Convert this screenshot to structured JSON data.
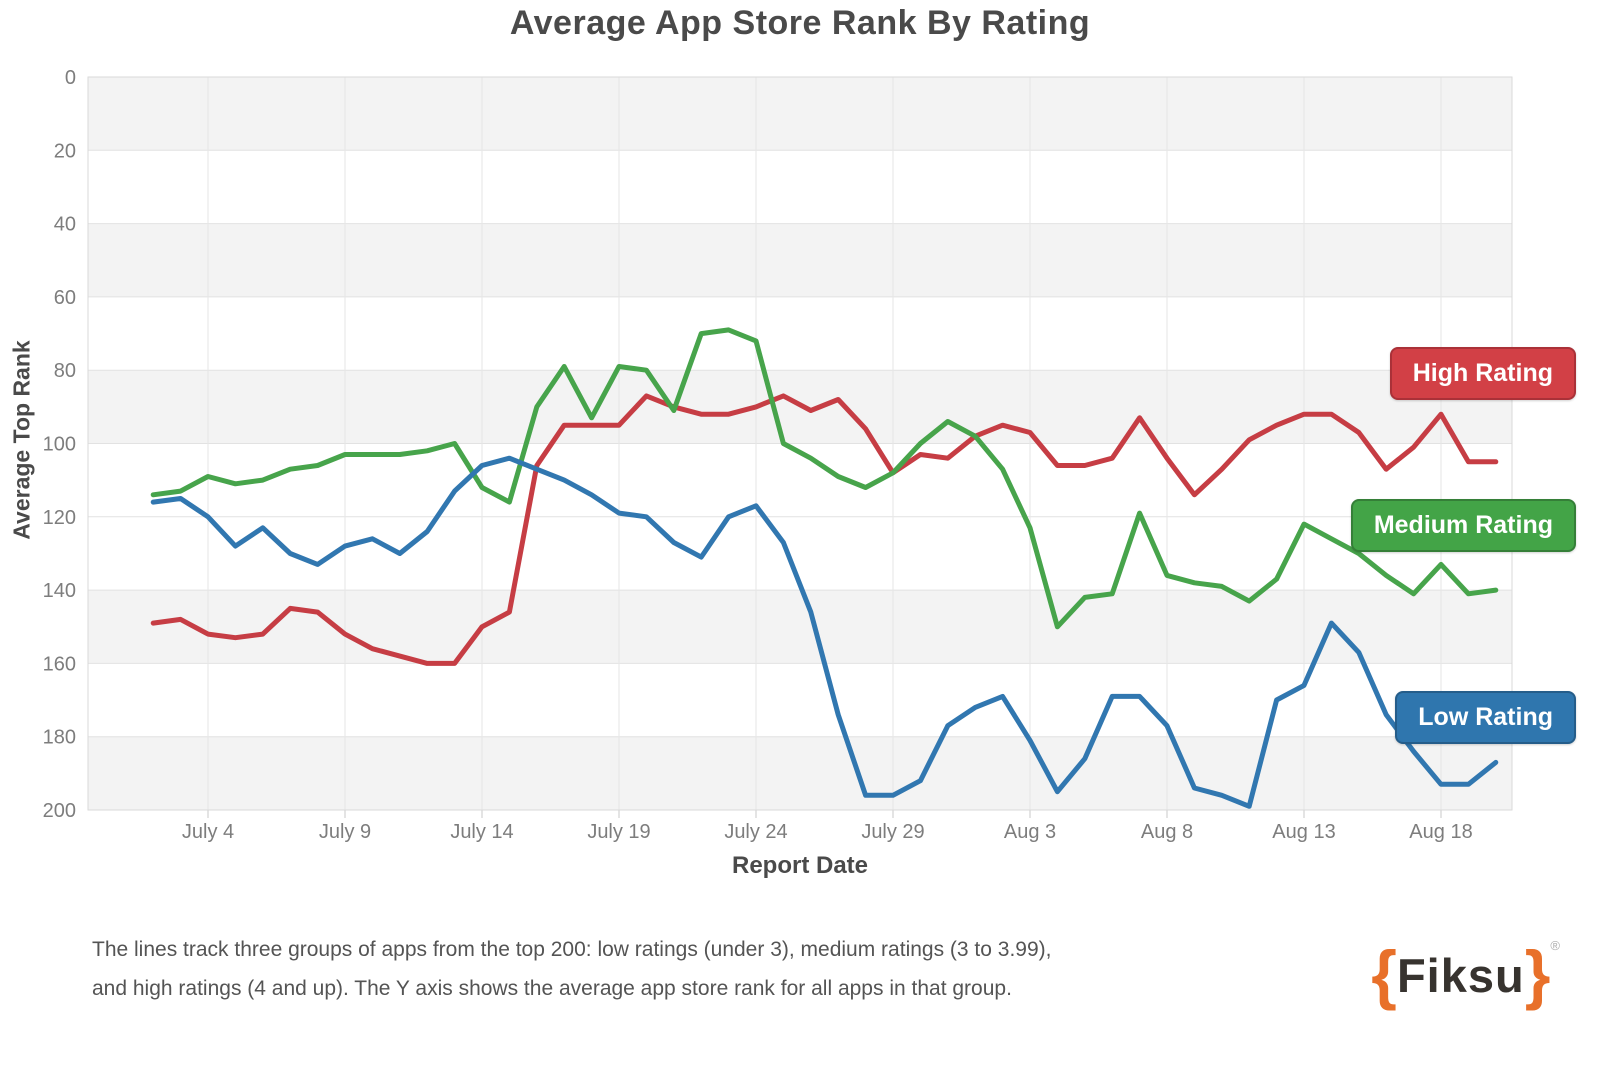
{
  "title": "Average App Store Rank By Rating",
  "y_axis": {
    "label": "Average Top Rank",
    "ticks": [
      0,
      20,
      40,
      60,
      80,
      100,
      120,
      140,
      160,
      180,
      200
    ]
  },
  "x_axis": {
    "label": "Report Date",
    "ticks": [
      "July 4",
      "July 9",
      "July 14",
      "July 19",
      "July 24",
      "July 29",
      "Aug 3",
      "Aug 8",
      "Aug 13",
      "Aug 18"
    ]
  },
  "legend": [
    {
      "label": "High Rating",
      "color": "#d24046",
      "border": "#aa3138"
    },
    {
      "label": "Medium Rating",
      "color": "#43a447",
      "border": "#357f38"
    },
    {
      "label": "Low Rating",
      "color": "#2f76ae",
      "border": "#255d8a"
    }
  ],
  "caption": {
    "line1": "The lines track three groups of apps from the top 200: low ratings (under 3), medium ratings (3 to 3.99),",
    "line2": "and high ratings (4 and up). The Y axis shows the average app store rank for all apps in that group."
  },
  "logo": {
    "open_brace": "{",
    "text": "Fiksu",
    "close_brace": "}",
    "registered": "®",
    "brace_color": "#e8702a",
    "text_color": "#37332f"
  },
  "chart_data": {
    "type": "line",
    "title": "Average App Store Rank By Rating",
    "xlabel": "Report Date",
    "ylabel": "Average Top Rank",
    "ylim": [
      200,
      0
    ],
    "y_inverted": true,
    "grid": true,
    "background_bands": [
      [
        0,
        20
      ],
      [
        40,
        60
      ],
      [
        80,
        100
      ],
      [
        140,
        160
      ],
      [
        180,
        200
      ]
    ],
    "legend_position": "right",
    "x": [
      "July 2",
      "July 3",
      "July 4",
      "July 5",
      "July 6",
      "July 7",
      "July 8",
      "July 9",
      "July 10",
      "July 11",
      "July 12",
      "July 13",
      "July 14",
      "July 15",
      "July 16",
      "July 17",
      "July 18",
      "July 19",
      "July 20",
      "July 21",
      "July 22",
      "July 23",
      "July 24",
      "July 25",
      "July 26",
      "July 27",
      "July 28",
      "July 29",
      "July 30",
      "July 31",
      "Aug 1",
      "Aug 2",
      "Aug 3",
      "Aug 4",
      "Aug 5",
      "Aug 6",
      "Aug 7",
      "Aug 8",
      "Aug 9",
      "Aug 10",
      "Aug 11",
      "Aug 12",
      "Aug 13",
      "Aug 14",
      "Aug 15",
      "Aug 16",
      "Aug 17",
      "Aug 18",
      "Aug 19",
      "Aug 20"
    ],
    "series": [
      {
        "name": "High Rating",
        "color": "#c63d44",
        "values": [
          149,
          148,
          152,
          153,
          152,
          145,
          146,
          152,
          156,
          158,
          160,
          160,
          150,
          146,
          106,
          95,
          95,
          95,
          87,
          90,
          92,
          92,
          90,
          87,
          91,
          88,
          96,
          108,
          103,
          104,
          98,
          95,
          97,
          106,
          106,
          104,
          93,
          104,
          114,
          107,
          99,
          95,
          92,
          92,
          97,
          107,
          101,
          92,
          105,
          105
        ]
      },
      {
        "name": "Medium Rating",
        "color": "#47a44b",
        "values": [
          114,
          113,
          109,
          111,
          110,
          107,
          106,
          103,
          103,
          103,
          102,
          100,
          112,
          116,
          90,
          79,
          93,
          79,
          80,
          91,
          70,
          69,
          72,
          100,
          104,
          109,
          112,
          108,
          100,
          94,
          98,
          107,
          123,
          150,
          142,
          141,
          119,
          136,
          138,
          139,
          143,
          137,
          122,
          126,
          130,
          136,
          141,
          133,
          141,
          140
        ]
      },
      {
        "name": "Low Rating",
        "color": "#3177b0",
        "values": [
          116,
          115,
          120,
          128,
          123,
          130,
          133,
          128,
          126,
          130,
          124,
          113,
          106,
          104,
          107,
          110,
          114,
          119,
          120,
          127,
          131,
          120,
          117,
          127,
          146,
          174,
          196,
          196,
          192,
          177,
          172,
          169,
          181,
          195,
          186,
          169,
          169,
          177,
          194,
          196,
          199,
          170,
          166,
          149,
          157,
          174,
          184,
          193,
          193,
          187
        ]
      }
    ]
  }
}
